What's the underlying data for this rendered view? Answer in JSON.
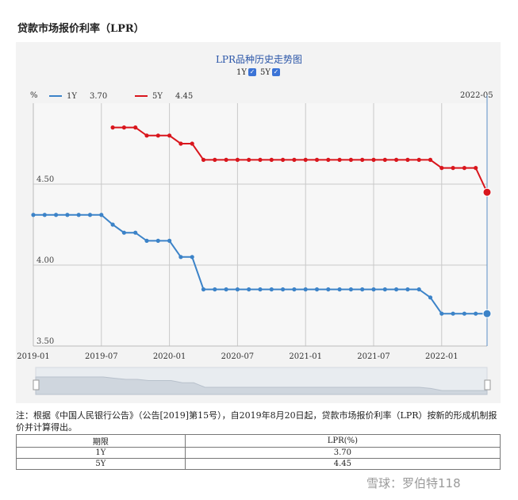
{
  "page": {
    "title": "贷款市场报价利率（LPR）",
    "note": "注：根据《中国人民银行公告》（公告[2019]第15号），自2019年8月20日起，贷款市场报价利率（LPR）按新的形成机制报价并计算得出。",
    "watermark": "雪球：罗伯特118"
  },
  "toggles": [
    {
      "label": "1Y",
      "checked": true,
      "mark": "✓"
    },
    {
      "label": "5Y",
      "checked": true,
      "mark": "✓"
    }
  ],
  "legend": {
    "unit": "%",
    "date": "2022-05",
    "items": [
      {
        "label": "1Y",
        "value": "3.70",
        "color": "#3c83c8"
      },
      {
        "label": "5Y",
        "value": "4.45",
        "color": "#d9161d"
      }
    ]
  },
  "table": {
    "headers": [
      "期限",
      "LPR(%)"
    ],
    "rows": [
      [
        "1Y",
        "3.70"
      ],
      [
        "5Y",
        "4.45"
      ]
    ]
  },
  "chart_data": {
    "type": "line",
    "title": "LPR品种历史走势图",
    "x": [
      "2019-01",
      "2019-02",
      "2019-03",
      "2019-04",
      "2019-05",
      "2019-06",
      "2019-07",
      "2019-08",
      "2019-09",
      "2019-10",
      "2019-11",
      "2019-12",
      "2020-01",
      "2020-02",
      "2020-03",
      "2020-04",
      "2020-05",
      "2020-06",
      "2020-07",
      "2020-08",
      "2020-09",
      "2020-10",
      "2020-11",
      "2020-12",
      "2021-01",
      "2021-02",
      "2021-03",
      "2021-04",
      "2021-05",
      "2021-06",
      "2021-07",
      "2021-08",
      "2021-09",
      "2021-10",
      "2021-11",
      "2021-12",
      "2022-01",
      "2022-02",
      "2022-03",
      "2022-04",
      "2022-05"
    ],
    "x_ticks": [
      "2019-01",
      "2019-07",
      "2020-01",
      "2020-07",
      "2021-01",
      "2021-07",
      "2022-01"
    ],
    "y_ticks": [
      "3.50",
      "4.00",
      "4.50"
    ],
    "ylim": [
      3.5,
      5.0
    ],
    "series": [
      {
        "name": "1Y",
        "color": "#3c83c8",
        "values": [
          4.31,
          4.31,
          4.31,
          4.31,
          4.31,
          4.31,
          4.31,
          4.25,
          4.2,
          4.2,
          4.15,
          4.15,
          4.15,
          4.05,
          4.05,
          3.85,
          3.85,
          3.85,
          3.85,
          3.85,
          3.85,
          3.85,
          3.85,
          3.85,
          3.85,
          3.85,
          3.85,
          3.85,
          3.85,
          3.85,
          3.85,
          3.85,
          3.85,
          3.85,
          3.85,
          3.8,
          3.7,
          3.7,
          3.7,
          3.7,
          3.7
        ]
      },
      {
        "name": "5Y",
        "color": "#d9161d",
        "values": [
          null,
          null,
          null,
          null,
          null,
          null,
          null,
          4.85,
          4.85,
          4.85,
          4.8,
          4.8,
          4.8,
          4.75,
          4.75,
          4.65,
          4.65,
          4.65,
          4.65,
          4.65,
          4.65,
          4.65,
          4.65,
          4.65,
          4.65,
          4.65,
          4.65,
          4.65,
          4.65,
          4.65,
          4.65,
          4.65,
          4.65,
          4.65,
          4.65,
          4.65,
          4.6,
          4.6,
          4.6,
          4.6,
          4.45
        ]
      }
    ],
    "grid": true,
    "legend_position": "top-left",
    "range_selector": true
  }
}
